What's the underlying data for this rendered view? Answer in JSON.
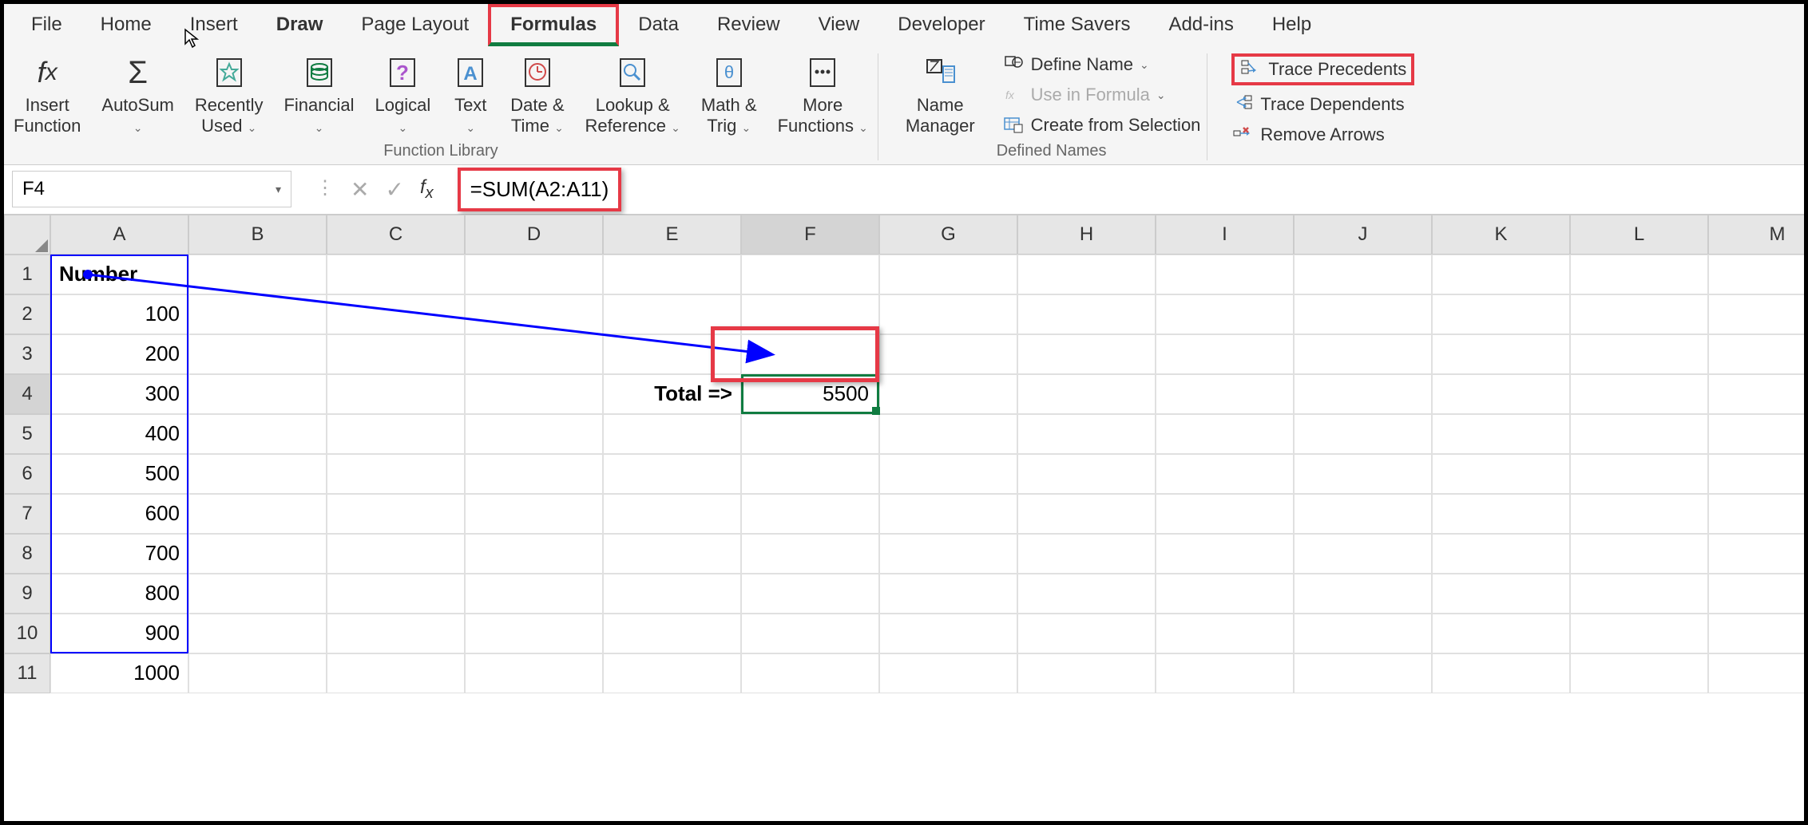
{
  "menu": {
    "items": [
      "File",
      "Home",
      "Insert",
      "Draw",
      "Page Layout",
      "Formulas",
      "Data",
      "Review",
      "View",
      "Developer",
      "Time Savers",
      "Add-ins",
      "Help"
    ],
    "active_tab": "Draw",
    "selected_tab": "Formulas"
  },
  "ribbon": {
    "function_library": {
      "label": "Function Library",
      "buttons": {
        "insert_function": {
          "label": "Insert\nFunction",
          "icon": "fx"
        },
        "autosum": {
          "label": "AutoSum",
          "icon": "Σ",
          "has_dropdown": true
        },
        "recently_used": {
          "label": "Recently\nUsed",
          "icon": "★",
          "has_dropdown": true
        },
        "financial": {
          "label": "Financial",
          "icon": "💰",
          "has_dropdown": true
        },
        "logical": {
          "label": "Logical",
          "icon": "?",
          "has_dropdown": true
        },
        "text": {
          "label": "Text",
          "icon": "A",
          "has_dropdown": true
        },
        "date_time": {
          "label": "Date &\nTime",
          "icon": "🕐",
          "has_dropdown": true
        },
        "lookup": {
          "label": "Lookup &\nReference",
          "icon": "🔍",
          "has_dropdown": true
        },
        "math_trig": {
          "label": "Math &\nTrig",
          "icon": "θ",
          "has_dropdown": true
        },
        "more": {
          "label": "More\nFunctions",
          "icon": "⋯",
          "has_dropdown": true
        }
      }
    },
    "defined_names": {
      "label": "Defined Names",
      "name_manager": {
        "label": "Name\nManager"
      },
      "define_name": {
        "label": "Define Name"
      },
      "use_in_formula": {
        "label": "Use in Formula"
      },
      "create_from_selection": {
        "label": "Create from Selection"
      }
    },
    "formula_auditing": {
      "trace_precedents": {
        "label": "Trace Precedents"
      },
      "trace_dependents": {
        "label": "Trace Dependents"
      },
      "remove_arrows": {
        "label": "Remove Arrows"
      }
    }
  },
  "formula_bar": {
    "cell_ref": "F4",
    "formula": "=SUM(A2:A11)"
  },
  "spreadsheet": {
    "columns": [
      "A",
      "B",
      "C",
      "D",
      "E",
      "F",
      "G",
      "H",
      "I",
      "J",
      "K",
      "L",
      "M"
    ],
    "row_count": 11,
    "active_col": "F",
    "active_row": 4,
    "cells": {
      "A1": {
        "value": "Number",
        "bold": true,
        "align": "left"
      },
      "A2": {
        "value": "100",
        "align": "right"
      },
      "A3": {
        "value": "200",
        "align": "right"
      },
      "A4": {
        "value": "300",
        "align": "right"
      },
      "A5": {
        "value": "400",
        "align": "right"
      },
      "A6": {
        "value": "500",
        "align": "right"
      },
      "A7": {
        "value": "600",
        "align": "right"
      },
      "A8": {
        "value": "700",
        "align": "right"
      },
      "A9": {
        "value": "800",
        "align": "right"
      },
      "A10": {
        "value": "900",
        "align": "right"
      },
      "A11": {
        "value": "1000",
        "align": "right"
      },
      "E4": {
        "value": "Total =>",
        "bold": true,
        "align": "right"
      },
      "F4": {
        "value": "5500",
        "align": "right",
        "selected": true
      }
    },
    "precedent_range": {
      "top_row": 2,
      "bottom_row": 11,
      "col": 1
    },
    "arrow": {
      "start": {
        "col": 1,
        "row": 2
      },
      "end": {
        "col": 6,
        "row": 4
      }
    }
  },
  "highlights": {
    "formulas_tab": {
      "color": "#e63946"
    },
    "trace_precedents": {
      "color": "#e63946"
    },
    "formula_text": {
      "color": "#e63946"
    },
    "f4_cell": {
      "color": "#e63946"
    }
  },
  "colors": {
    "excel_green": "#107c41",
    "highlight_red": "#e63946",
    "precedent_blue": "#0000ff",
    "ribbon_bg": "#f5f5f5",
    "header_bg": "#e6e6e6",
    "border_gray": "#ccc"
  }
}
